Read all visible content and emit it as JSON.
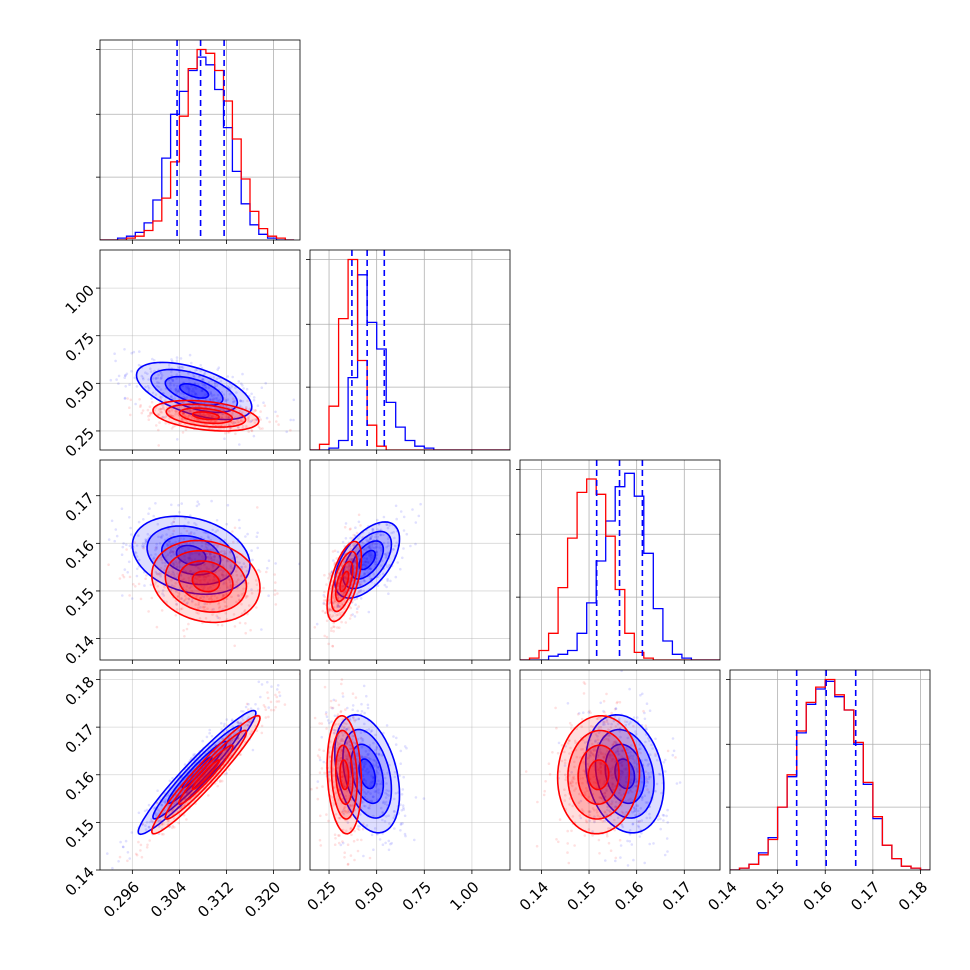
{
  "chart_data": {
    "type": "corner",
    "series": [
      {
        "name": "",
        "color": "#0000ff"
      },
      {
        "name": "",
        "color": "#ff0000"
      }
    ],
    "grid": true,
    "parameters": [
      {
        "id": "p0",
        "range": [
          0.2905,
          0.3245
        ],
        "ticks": [
          "0.296",
          "0.304",
          "0.312",
          "0.320"
        ],
        "tick_values": [
          0.296,
          0.304,
          0.312,
          0.32
        ],
        "quantiles": [
          0.3036,
          0.3076,
          0.3116
        ]
      },
      {
        "id": "p1",
        "range": [
          0.15,
          1.2
        ],
        "ticks": [
          "0.25",
          "0.50",
          "0.75",
          "1.00"
        ],
        "tick_values": [
          0.25,
          0.5,
          0.75,
          1.0
        ],
        "quantiles": [
          0.37,
          0.45,
          0.54
        ]
      },
      {
        "id": "p2",
        "range": [
          0.1355,
          0.1775
        ],
        "ticks": [
          "0.14",
          "0.15",
          "0.16",
          "0.17"
        ],
        "tick_values": [
          0.14,
          0.15,
          0.16,
          0.17
        ],
        "quantiles": [
          0.1516,
          0.1564,
          0.1612
        ]
      },
      {
        "id": "p3",
        "range": [
          0.14,
          0.182
        ],
        "ticks": [
          "0.14",
          "0.15",
          "0.16",
          "0.17",
          "0.18"
        ],
        "tick_values": [
          0.14,
          0.15,
          0.16,
          0.17,
          0.18
        ],
        "quantiles": [
          0.154,
          0.1602,
          0.1664
        ]
      }
    ],
    "histograms": [
      {
        "param": 0,
        "bin_edges": [
          0.2905,
          0.292,
          0.2935,
          0.295,
          0.2965,
          0.298,
          0.2995,
          0.301,
          0.3025,
          0.304,
          0.3055,
          0.307,
          0.3085,
          0.31,
          0.3115,
          0.313,
          0.3145,
          0.316,
          0.3175,
          0.319,
          0.3205,
          0.322,
          0.3235
        ],
        "blue": [
          0.0,
          0.0,
          0.01,
          0.02,
          0.04,
          0.09,
          0.21,
          0.43,
          0.66,
          0.78,
          0.89,
          0.96,
          0.92,
          0.79,
          0.59,
          0.36,
          0.19,
          0.08,
          0.03,
          0.01,
          0.0,
          0.0
        ],
        "red": [
          0.0,
          0.0,
          0.0,
          0.01,
          0.02,
          0.05,
          0.1,
          0.22,
          0.41,
          0.65,
          0.9,
          1.0,
          0.98,
          0.89,
          0.73,
          0.53,
          0.32,
          0.15,
          0.06,
          0.02,
          0.01,
          0.0
        ]
      },
      {
        "param": 1,
        "bin_edges": [
          0.15,
          0.2,
          0.25,
          0.3,
          0.35,
          0.4,
          0.45,
          0.5,
          0.55,
          0.6,
          0.65,
          0.7,
          0.75,
          0.8,
          0.85,
          0.9,
          0.95,
          1.0,
          1.05,
          1.1,
          1.15,
          1.2
        ],
        "blue": [
          0.0,
          0.0,
          0.01,
          0.05,
          0.38,
          0.92,
          0.67,
          0.53,
          0.25,
          0.12,
          0.05,
          0.02,
          0.01,
          0.0,
          0.0,
          0.0,
          0.0,
          0.0,
          0.0,
          0.0,
          0.0
        ],
        "red": [
          0.0,
          0.03,
          0.23,
          0.69,
          1.0,
          0.47,
          0.13,
          0.02,
          0.0,
          0.0,
          0.0,
          0.0,
          0.0,
          0.0,
          0.0,
          0.0,
          0.0,
          0.0,
          0.0,
          0.0,
          0.0
        ]
      },
      {
        "param": 2,
        "bin_edges": [
          0.1355,
          0.1375,
          0.1395,
          0.1415,
          0.1435,
          0.1455,
          0.1475,
          0.1495,
          0.1515,
          0.1535,
          0.1555,
          0.1575,
          0.1595,
          0.1615,
          0.1635,
          0.1655,
          0.1675,
          0.1695,
          0.1715,
          0.1735,
          0.1755,
          0.1775
        ],
        "blue": [
          0.0,
          0.0,
          0.0,
          0.02,
          0.03,
          0.05,
          0.14,
          0.3,
          0.52,
          0.73,
          0.91,
          0.98,
          0.86,
          0.56,
          0.27,
          0.1,
          0.03,
          0.01,
          0.0,
          0.0,
          0.0
        ],
        "red": [
          0.0,
          0.01,
          0.05,
          0.14,
          0.38,
          0.64,
          0.88,
          0.95,
          0.87,
          0.65,
          0.37,
          0.14,
          0.04,
          0.01,
          0.0,
          0.0,
          0.0,
          0.0,
          0.0,
          0.0,
          0.0
        ]
      },
      {
        "param": 3,
        "bin_edges": [
          0.14,
          0.142,
          0.144,
          0.146,
          0.148,
          0.15,
          0.152,
          0.154,
          0.156,
          0.158,
          0.16,
          0.162,
          0.164,
          0.166,
          0.168,
          0.17,
          0.172,
          0.174,
          0.176,
          0.178,
          0.18,
          0.182
        ],
        "blue": [
          0.0,
          0.01,
          0.03,
          0.09,
          0.17,
          0.33,
          0.49,
          0.72,
          0.87,
          0.95,
          0.99,
          0.91,
          0.84,
          0.66,
          0.45,
          0.27,
          0.13,
          0.06,
          0.02,
          0.01,
          0.0
        ],
        "red": [
          0.0,
          0.01,
          0.03,
          0.08,
          0.16,
          0.33,
          0.5,
          0.73,
          0.88,
          0.96,
          1.0,
          0.92,
          0.84,
          0.67,
          0.46,
          0.28,
          0.13,
          0.06,
          0.02,
          0.01,
          0.0
        ]
      }
    ],
    "pairs": [
      {
        "x": 0,
        "y": 1,
        "blue": {
          "mean": [
            0.3065,
            0.46
          ],
          "sd": [
            0.0049,
            0.075
          ],
          "rho": -0.55
        },
        "red": {
          "mean": [
            0.3085,
            0.33
          ],
          "sd": [
            0.0045,
            0.04
          ],
          "rho": -0.35
        }
      },
      {
        "x": 0,
        "y": 2,
        "blue": {
          "mean": [
            0.306,
            0.1575
          ],
          "sd": [
            0.005,
            0.0041
          ],
          "rho": -0.25
        },
        "red": {
          "mean": [
            0.3085,
            0.152
          ],
          "sd": [
            0.0046,
            0.0043
          ],
          "rho": -0.15
        }
      },
      {
        "x": 1,
        "y": 2,
        "blue": {
          "mean": [
            0.45,
            0.1565
          ],
          "sd": [
            0.085,
            0.004
          ],
          "rho": 0.55
        },
        "red": {
          "mean": [
            0.33,
            0.152
          ],
          "sd": [
            0.045,
            0.0042
          ],
          "rho": 0.6
        }
      },
      {
        "x": 0,
        "y": 3,
        "blue": {
          "mean": [
            0.307,
            0.1605
          ],
          "sd": [
            0.005,
            0.0065
          ],
          "rho": 0.96
        },
        "red": {
          "mean": [
            0.3085,
            0.16
          ],
          "sd": [
            0.0046,
            0.0062
          ],
          "rho": 0.96
        }
      },
      {
        "x": 1,
        "y": 3,
        "blue": {
          "mean": [
            0.45,
            0.1602
          ],
          "sd": [
            0.085,
            0.0062
          ],
          "rho": -0.35
        },
        "red": {
          "mean": [
            0.33,
            0.16
          ],
          "sd": [
            0.045,
            0.0062
          ],
          "rho": -0.15
        }
      },
      {
        "x": 2,
        "y": 3,
        "blue": {
          "mean": [
            0.1575,
            0.1602
          ],
          "sd": [
            0.0041,
            0.0062
          ],
          "rho": -0.2
        },
        "red": {
          "mean": [
            0.152,
            0.16
          ],
          "sd": [
            0.0043,
            0.0062
          ],
          "rho": 0.05
        }
      }
    ],
    "contour_sigma_levels": [
      0.5,
      1.0,
      1.5,
      2.0
    ]
  }
}
